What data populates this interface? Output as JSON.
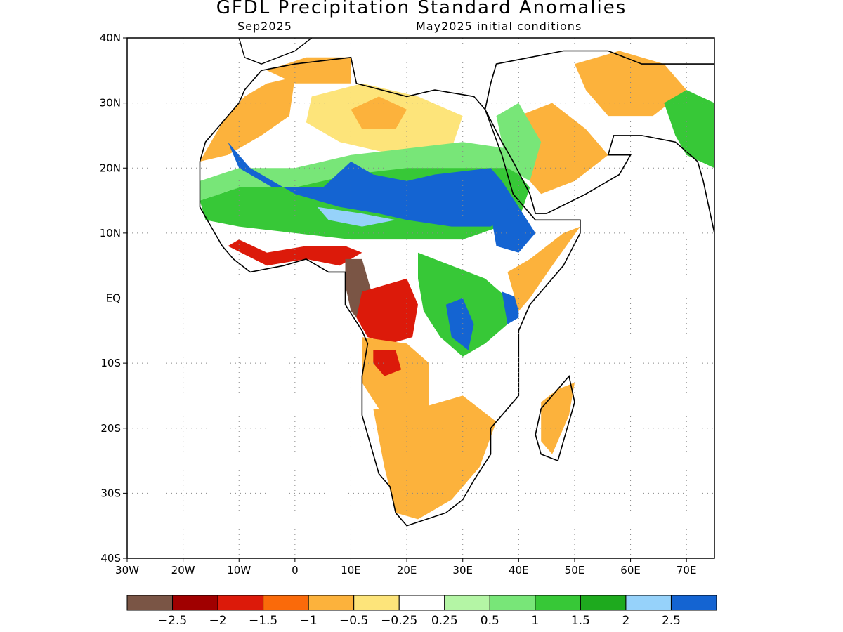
{
  "title": "GFDL Precipitation Standard Anomalies",
  "subtitle_left": "Sep2025",
  "subtitle_right": "May2025 initial conditions",
  "lat_labels": [
    "40N",
    "30N",
    "20N",
    "10N",
    "EQ",
    "10S",
    "20S",
    "30S",
    "40S"
  ],
  "lon_labels": [
    "30W",
    "20W",
    "10W",
    "0",
    "10E",
    "20E",
    "30E",
    "40E",
    "50E",
    "60E",
    "70E"
  ],
  "colorbar": {
    "colors": [
      "#7a5545",
      "#a00000",
      "#dc1a0a",
      "#fa6a0a",
      "#fcb23c",
      "#fde47a",
      "#ffffff",
      "#b4f5a5",
      "#78e678",
      "#37c837",
      "#1eaa1e",
      "#96d2fa",
      "#1464d2"
    ],
    "labels": [
      "−2.5",
      "−2",
      "−1.5",
      "−1",
      "−0.5",
      "−0.25",
      "0.25",
      "0.5",
      "1",
      "1.5",
      "2",
      "2.5"
    ]
  },
  "regions": [
    {
      "name": "sahara-west-dry",
      "color": "#fcb23c",
      "points": [
        [
          -17,
          21
        ],
        [
          -13,
          27
        ],
        [
          -9,
          31
        ],
        [
          -5,
          33
        ],
        [
          0,
          34
        ],
        [
          -1,
          28
        ],
        [
          -6,
          25
        ],
        [
          -12,
          22
        ]
      ]
    },
    {
      "name": "sahara-central-dry",
      "color": "#fde47a",
      "points": [
        [
          3,
          31
        ],
        [
          12,
          33
        ],
        [
          22,
          31
        ],
        [
          30,
          28
        ],
        [
          28,
          23
        ],
        [
          18,
          22
        ],
        [
          8,
          24
        ],
        [
          2,
          27
        ]
      ]
    },
    {
      "name": "libya-orange",
      "color": "#fcb23c",
      "points": [
        [
          10,
          29
        ],
        [
          15,
          31
        ],
        [
          20,
          29
        ],
        [
          18,
          26
        ],
        [
          12,
          26
        ]
      ]
    },
    {
      "name": "sahel-green",
      "color": "#37c837",
      "points": [
        [
          -17,
          15
        ],
        [
          -10,
          17
        ],
        [
          0,
          18
        ],
        [
          10,
          19
        ],
        [
          20,
          21
        ],
        [
          30,
          22
        ],
        [
          38,
          21
        ],
        [
          42,
          17
        ],
        [
          40,
          12
        ],
        [
          30,
          9
        ],
        [
          20,
          9
        ],
        [
          10,
          9
        ],
        [
          0,
          10
        ],
        [
          -10,
          11
        ],
        [
          -16,
          12
        ]
      ]
    },
    {
      "name": "sahel-lightgreen",
      "color": "#78e678",
      "points": [
        [
          -17,
          18
        ],
        [
          -10,
          20
        ],
        [
          0,
          20
        ],
        [
          10,
          22
        ],
        [
          20,
          23
        ],
        [
          30,
          24
        ],
        [
          38,
          23
        ],
        [
          39,
          20
        ],
        [
          30,
          20
        ],
        [
          20,
          20
        ],
        [
          10,
          19
        ],
        [
          0,
          17
        ],
        [
          -10,
          17
        ],
        [
          -17,
          15
        ]
      ]
    },
    {
      "name": "sahel-blue",
      "color": "#1464d2",
      "points": [
        [
          -12,
          24
        ],
        [
          -10,
          20
        ],
        [
          -4,
          17
        ],
        [
          5,
          17
        ],
        [
          10,
          21
        ],
        [
          14,
          19
        ],
        [
          20,
          18
        ],
        [
          25,
          19
        ],
        [
          35,
          20
        ],
        [
          37,
          18
        ],
        [
          40,
          14
        ],
        [
          35,
          11
        ],
        [
          28,
          11
        ],
        [
          20,
          12
        ],
        [
          15,
          13
        ],
        [
          8,
          14
        ],
        [
          0,
          16
        ],
        [
          -8,
          20
        ]
      ]
    },
    {
      "name": "sahel-lightblue",
      "color": "#96d2fa",
      "points": [
        [
          4,
          14
        ],
        [
          12,
          13
        ],
        [
          18,
          12
        ],
        [
          12,
          11
        ],
        [
          6,
          12
        ]
      ]
    },
    {
      "name": "guinea-coast-red",
      "color": "#dc1a0a",
      "points": [
        [
          -12,
          8
        ],
        [
          -5,
          5
        ],
        [
          2,
          6
        ],
        [
          8,
          5
        ],
        [
          12,
          7
        ],
        [
          9,
          8
        ],
        [
          2,
          8
        ],
        [
          -5,
          7
        ],
        [
          -10,
          9
        ]
      ]
    },
    {
      "name": "congo-brown",
      "color": "#7a5545",
      "points": [
        [
          9,
          6
        ],
        [
          12,
          6
        ],
        [
          13,
          3
        ],
        [
          14,
          0
        ],
        [
          16,
          -3
        ],
        [
          17,
          -5
        ],
        [
          13,
          -5
        ],
        [
          10,
          -2
        ],
        [
          9,
          2
        ]
      ]
    },
    {
      "name": "congo-red",
      "color": "#dc1a0a",
      "points": [
        [
          12,
          1
        ],
        [
          16,
          2
        ],
        [
          20,
          3
        ],
        [
          22,
          -1
        ],
        [
          21,
          -6
        ],
        [
          17,
          -7
        ],
        [
          13,
          -6
        ],
        [
          11,
          -3
        ]
      ]
    },
    {
      "name": "angola-orange",
      "color": "#fcb23c",
      "points": [
        [
          12,
          -6
        ],
        [
          20,
          -7
        ],
        [
          24,
          -10
        ],
        [
          24,
          -17
        ],
        [
          20,
          -19
        ],
        [
          15,
          -17
        ],
        [
          12,
          -13
        ]
      ]
    },
    {
      "name": "angola-red",
      "color": "#dc1a0a",
      "points": [
        [
          14,
          -8
        ],
        [
          18,
          -8
        ],
        [
          19,
          -11
        ],
        [
          16,
          -12
        ],
        [
          14,
          -10
        ]
      ]
    },
    {
      "name": "southern-africa-orange",
      "color": "#fcb23c",
      "points": [
        [
          14,
          -17
        ],
        [
          22,
          -17
        ],
        [
          30,
          -15
        ],
        [
          36,
          -19
        ],
        [
          33,
          -26
        ],
        [
          28,
          -31
        ],
        [
          22,
          -34
        ],
        [
          18,
          -33
        ],
        [
          16,
          -26
        ]
      ]
    },
    {
      "name": "east-africa-green",
      "color": "#37c837",
      "points": [
        [
          22,
          7
        ],
        [
          28,
          5
        ],
        [
          34,
          3
        ],
        [
          38,
          0
        ],
        [
          38,
          -4
        ],
        [
          34,
          -7
        ],
        [
          30,
          -9
        ],
        [
          26,
          -6
        ],
        [
          23,
          -2
        ],
        [
          22,
          3
        ]
      ]
    },
    {
      "name": "east-africa-blue",
      "color": "#1464d2",
      "points": [
        [
          27,
          -1
        ],
        [
          30,
          0
        ],
        [
          32,
          -4
        ],
        [
          31,
          -8
        ],
        [
          28,
          -6
        ]
      ]
    },
    {
      "name": "ethiopia-blue",
      "color": "#1464d2",
      "points": [
        [
          35,
          13
        ],
        [
          40,
          14
        ],
        [
          43,
          10
        ],
        [
          40,
          7
        ],
        [
          36,
          8
        ]
      ]
    },
    {
      "name": "kenya-blue",
      "color": "#1464d2",
      "points": [
        [
          37,
          1
        ],
        [
          40,
          0
        ],
        [
          40,
          -3
        ],
        [
          38,
          -4
        ]
      ]
    },
    {
      "name": "horn-orange",
      "color": "#fcb23c",
      "points": [
        [
          38,
          4
        ],
        [
          42,
          6
        ],
        [
          48,
          10
        ],
        [
          51,
          11
        ],
        [
          46,
          5
        ],
        [
          42,
          0
        ],
        [
          40,
          -2
        ]
      ]
    },
    {
      "name": "madagascar-orange",
      "color": "#fcb23c",
      "points": [
        [
          44,
          -16
        ],
        [
          47,
          -14
        ],
        [
          50,
          -13
        ],
        [
          49,
          -18
        ],
        [
          46,
          -24
        ],
        [
          44,
          -22
        ]
      ]
    },
    {
      "name": "arabia-orange",
      "color": "#fcb23c",
      "points": [
        [
          40,
          28
        ],
        [
          46,
          30
        ],
        [
          52,
          26
        ],
        [
          56,
          22
        ],
        [
          50,
          18
        ],
        [
          44,
          16
        ],
        [
          40,
          20
        ]
      ]
    },
    {
      "name": "arabia-green",
      "color": "#78e678",
      "points": [
        [
          36,
          28
        ],
        [
          40,
          30
        ],
        [
          44,
          24
        ],
        [
          42,
          18
        ],
        [
          38,
          20
        ]
      ]
    },
    {
      "name": "middle-east-orange",
      "color": "#fcb23c",
      "points": [
        [
          50,
          36
        ],
        [
          58,
          38
        ],
        [
          66,
          36
        ],
        [
          70,
          32
        ],
        [
          64,
          28
        ],
        [
          56,
          28
        ],
        [
          52,
          32
        ]
      ]
    },
    {
      "name": "india-green",
      "color": "#37c837",
      "points": [
        [
          66,
          30
        ],
        [
          70,
          32
        ],
        [
          75,
          30
        ],
        [
          75,
          20
        ],
        [
          70,
          22
        ],
        [
          68,
          25
        ]
      ]
    },
    {
      "name": "med-coast-orange",
      "color": "#fcb23c",
      "points": [
        [
          -5,
          35
        ],
        [
          2,
          37
        ],
        [
          10,
          37
        ],
        [
          10,
          33
        ],
        [
          0,
          33
        ]
      ]
    }
  ]
}
